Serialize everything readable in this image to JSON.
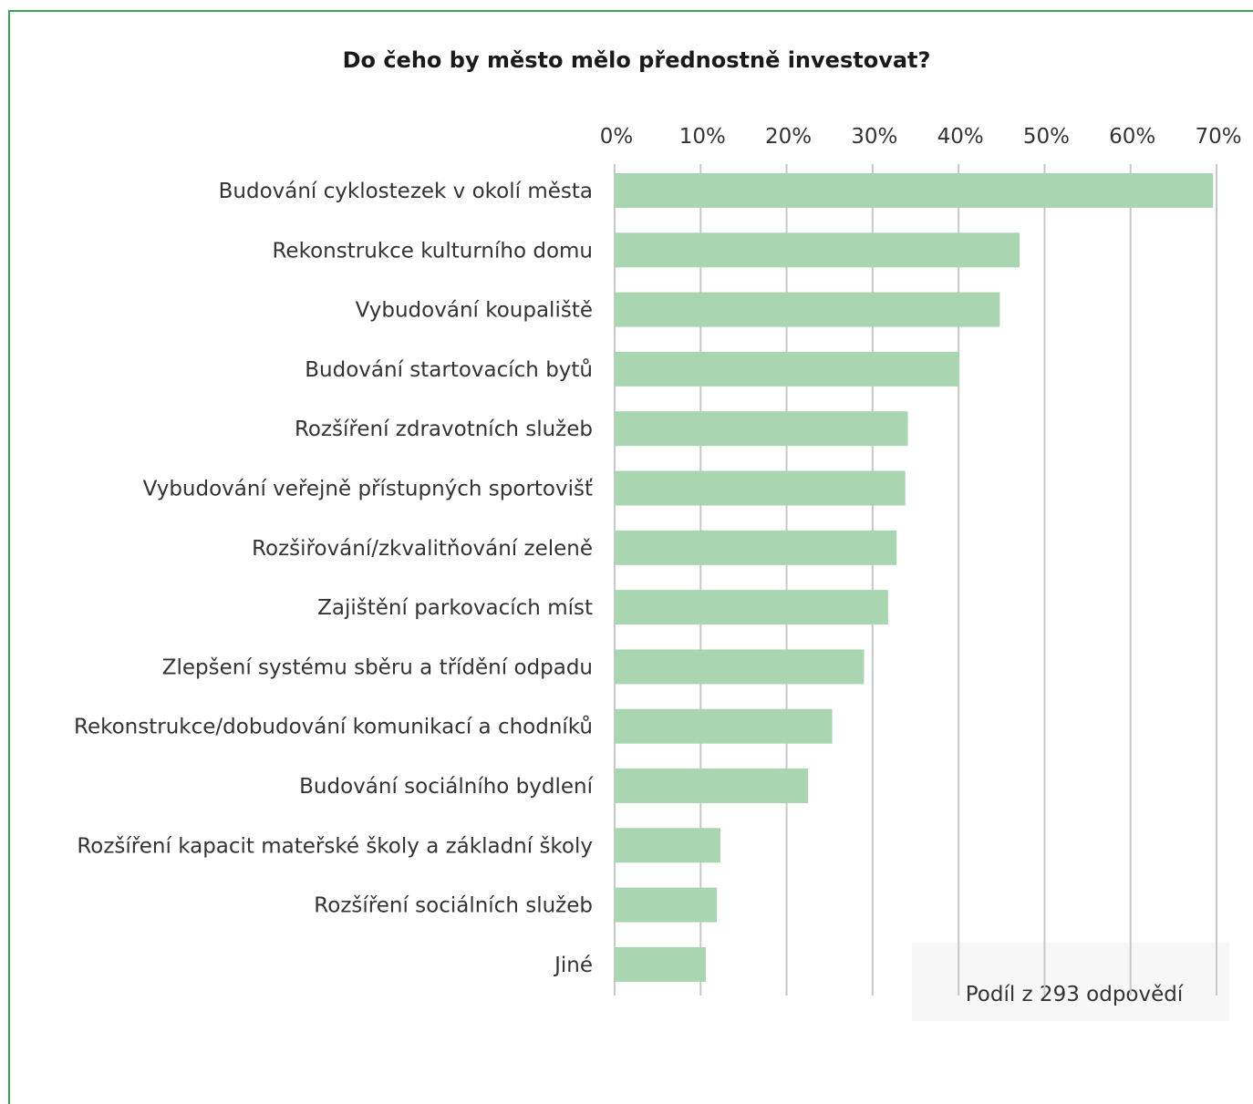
{
  "chart_data": {
    "type": "bar",
    "orientation": "horizontal",
    "title": "Do čeho by město mělo přednostně investovat?",
    "categories": [
      "Budování cyklostezek v okolí města",
      "Rekonstrukce kulturního domu",
      "Vybudování koupaliště",
      "Budování startovacích bytů",
      "Rozšíření zdravotních služeb",
      "Vybudování veřejně přístupných sportovišť",
      "Rozšiřování/zkvalitňování zeleně",
      "Zajištění parkovacích míst",
      "Zlepšení systému sběru a třídění odpadu",
      "Rekonstrukce/dobudování komunikací a chodníků",
      "Budování sociálního bydlení",
      "Rozšíření kapacit mateřské školy a základní školy",
      "Rozšíření sociálních služeb",
      "Jiné"
    ],
    "values": [
      69.6,
      47.1,
      44.8,
      40.1,
      34.1,
      33.8,
      32.8,
      31.8,
      29.0,
      25.3,
      22.5,
      12.3,
      11.9,
      10.6
    ],
    "x_ticks": [
      "0%",
      "10%",
      "20%",
      "30%",
      "40%",
      "50%",
      "60%",
      "70%"
    ],
    "xlim": [
      0,
      70
    ],
    "x_axis_position": "top",
    "grid": true,
    "note": "Podíl z 293 odpovědí",
    "colors": {
      "bar": "#a9d5b1",
      "grid": "#c8c8c8",
      "frame": "#3aa35a",
      "text": "#333333"
    }
  }
}
